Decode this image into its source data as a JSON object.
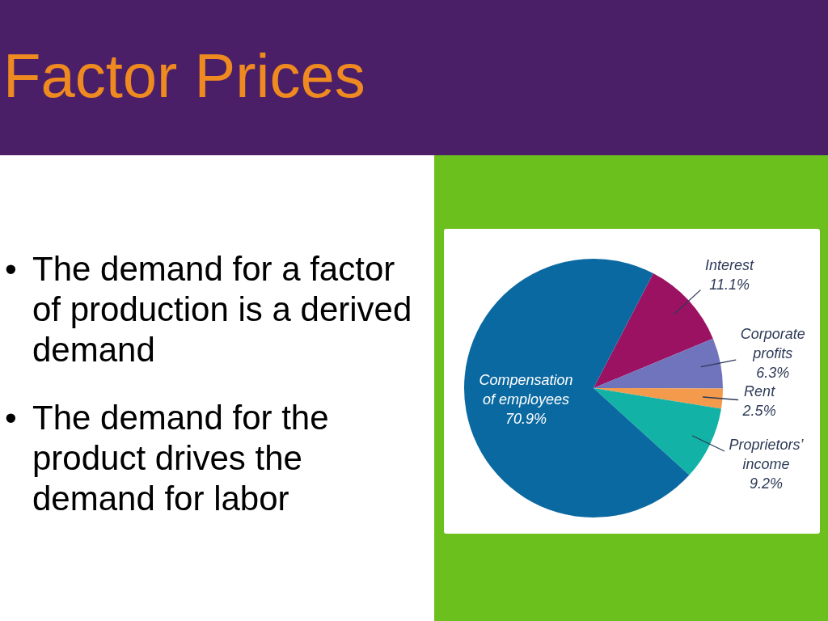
{
  "chart_data": {
    "type": "pie",
    "title": "Factor Prices",
    "annotations": [
      "• The demand for a factor of production is a derived demand",
      "• The demand for the product drives the demand for labor"
    ],
    "categories": [
      "Interest",
      "Corporate profits",
      "Rent",
      "Proprietors’ income",
      "Compensation of employees"
    ],
    "values": [
      11.1,
      6.3,
      2.5,
      9.2,
      70.9
    ],
    "colors": [
      "#9c1262",
      "#6f74bd",
      "#f39a4c",
      "#12b3a6",
      "#0b69a1"
    ],
    "value_labels": [
      "11.1%",
      "6.3%",
      "2.5%",
      "9.2%",
      "70.9%"
    ]
  }
}
